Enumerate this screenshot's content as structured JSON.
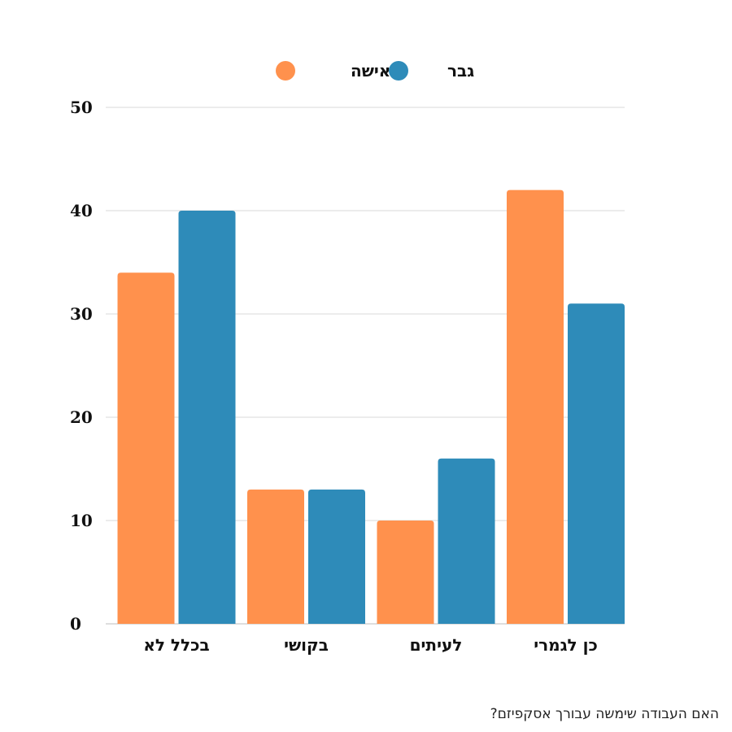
{
  "chart_data": {
    "type": "bar",
    "categories": [
      "בכלל לא",
      "בקושי",
      "לעיתים",
      "כן לגמרי"
    ],
    "series": [
      {
        "name": "אישה",
        "color": "#FF914D",
        "values": [
          34,
          13,
          10,
          42
        ]
      },
      {
        "name": "גבר",
        "color": "#2E8BB9",
        "values": [
          40,
          13,
          16,
          31
        ]
      }
    ],
    "yticks": [
      "0",
      "10",
      "20",
      "30",
      "40",
      "50"
    ],
    "ylim": [
      0,
      50
    ],
    "grid": true,
    "legend_position": "top-center"
  },
  "caption": "האם העבודה שימשה עבורך אסקפיזם?"
}
